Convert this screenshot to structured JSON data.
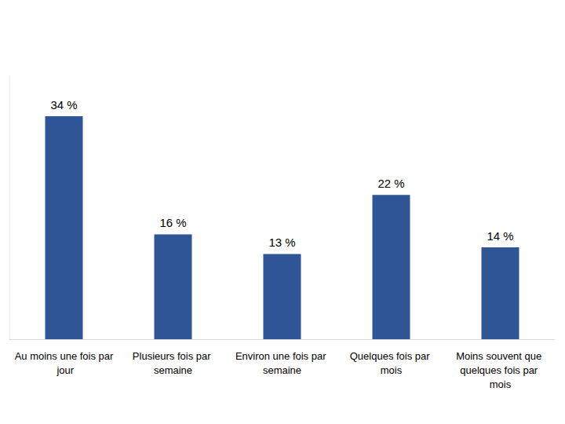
{
  "chart_data": {
    "type": "bar",
    "categories": [
      "Au moins une fois par jour",
      "Plusieurs fois par semaine",
      "Environ une fois par semaine",
      "Quelques fois par mois",
      "Moins souvent que quelques fois par mois"
    ],
    "values": [
      34,
      16,
      13,
      22,
      14
    ],
    "value_labels": [
      "34 %",
      "16 %",
      "13 %",
      "22 %",
      "14 %"
    ],
    "data_labels": true,
    "color": "#2f5597",
    "ylim": [
      0,
      40
    ],
    "grid": false,
    "tick_labels": "x"
  }
}
